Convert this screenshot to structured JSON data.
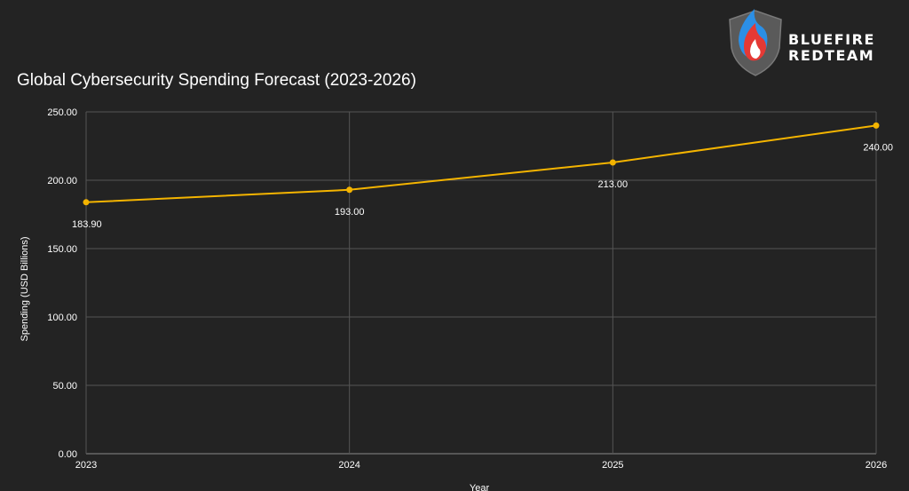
{
  "logo": {
    "line1": "BLUEFIRE",
    "line2": "REDTEAM",
    "icon": "flame-shield-icon"
  },
  "colors": {
    "background": "#232323",
    "series": "#f4b400",
    "grid": "#555555",
    "text": "#ffffff"
  },
  "chart_data": {
    "type": "line",
    "title": "Global Cybersecurity Spending Forecast (2023-2026)",
    "xlabel": "Year",
    "ylabel": "Spending (USD Billions)",
    "categories": [
      "2023",
      "2024",
      "2025",
      "2026"
    ],
    "series": [
      {
        "values": [
          183.9,
          193.0,
          213.0,
          240.0
        ],
        "labels": [
          "183.90",
          "193.00",
          "213.00",
          "240.00"
        ]
      }
    ],
    "ylim": [
      0,
      250
    ],
    "yticks": [
      "0.00",
      "50.00",
      "100.00",
      "150.00",
      "200.00",
      "250.00"
    ],
    "grid": true,
    "legend": "none"
  }
}
